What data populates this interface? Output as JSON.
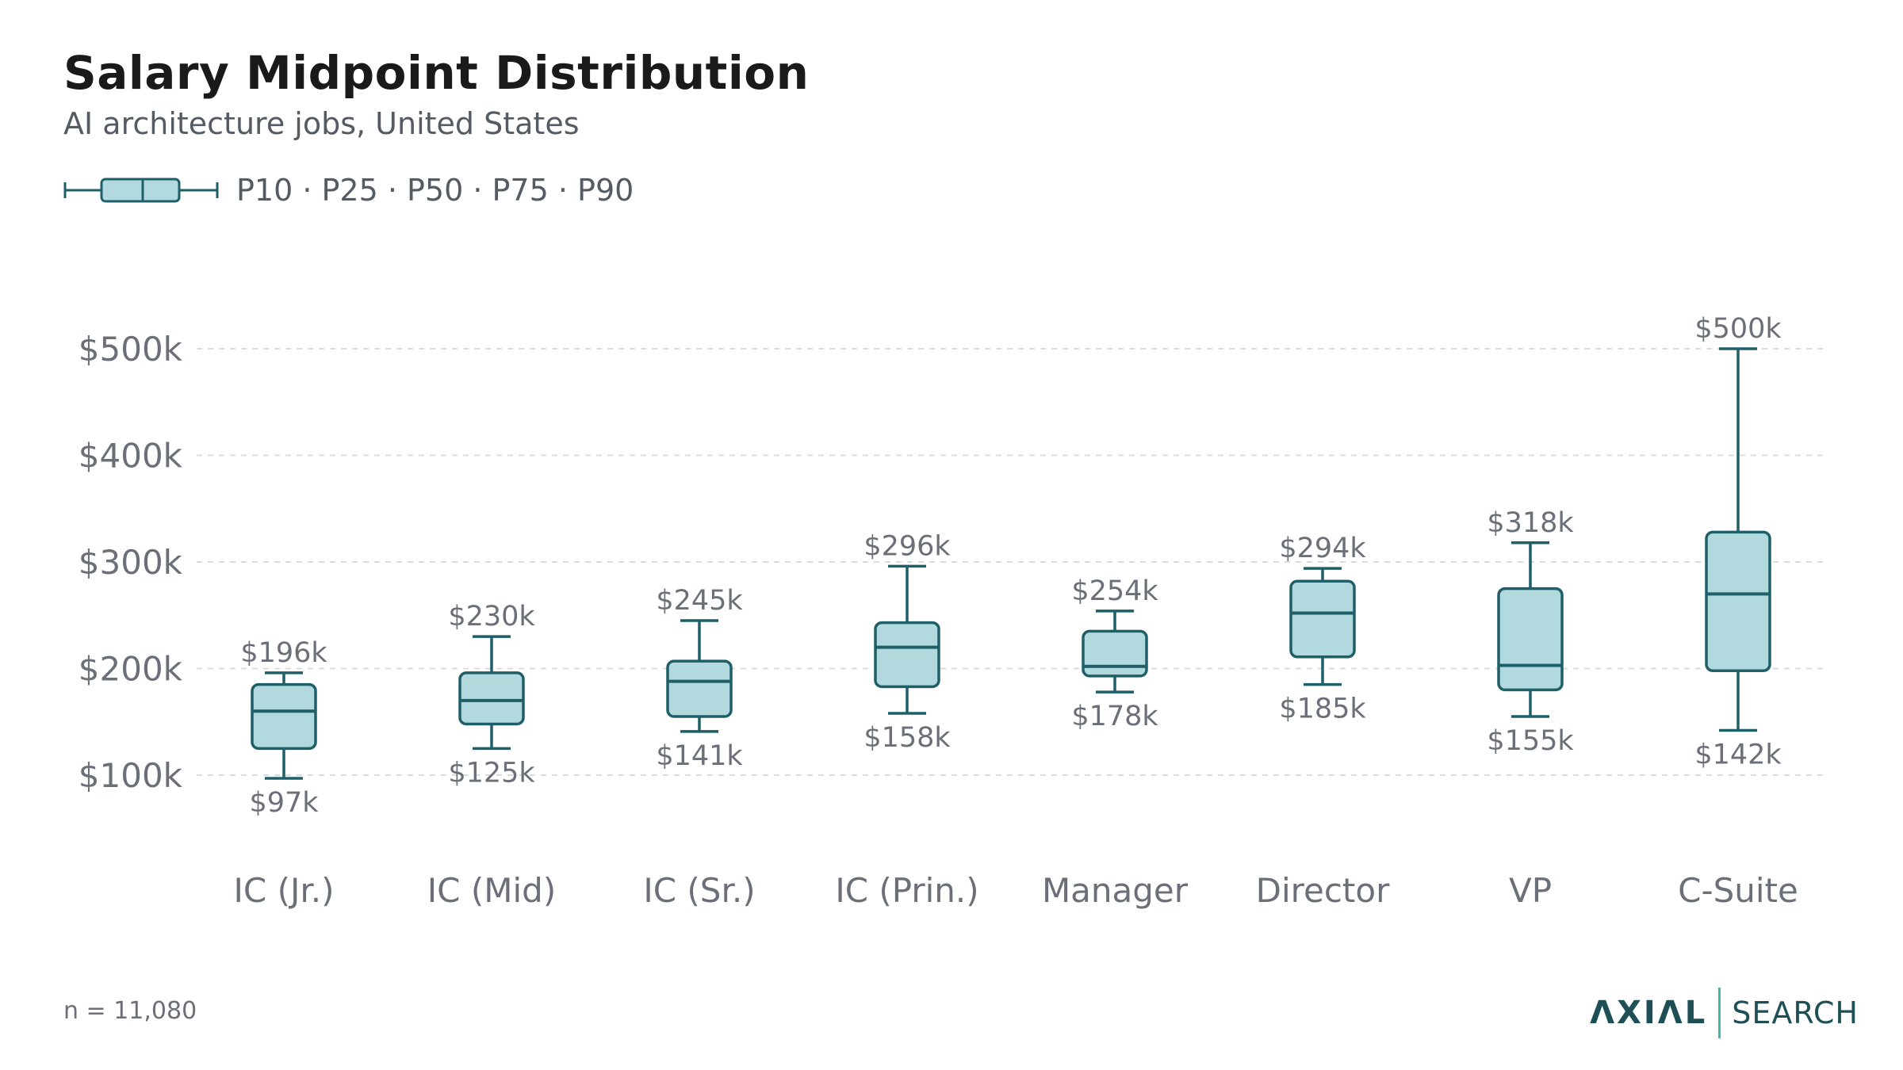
{
  "header": {
    "title": "Salary Midpoint Distribution",
    "subtitle": "AI architecture jobs, United States"
  },
  "legend": {
    "label": "P10 · P25 · P50 · P75 · P90"
  },
  "footer": {
    "note": "n = 11,080",
    "brand_primary": "ΛXIΛL",
    "brand_secondary": "SEARCH"
  },
  "colors": {
    "box_fill": "#b2d9de",
    "box_stroke": "#1f5f68",
    "grid": "#d9dcdf",
    "axis_text": "#6b7078",
    "value_text": "#6b7078",
    "brand_dark": "#1d4f55",
    "brand_accent": "#3fb8a4"
  },
  "chart_data": {
    "type": "box",
    "ylim": [
      0,
      520
    ],
    "yticks": [
      100,
      200,
      300,
      400,
      500
    ],
    "ytick_labels": [
      "$100k",
      "$200k",
      "$300k",
      "$400k",
      "$500k"
    ],
    "grid": true,
    "categories": [
      "IC (Jr.)",
      "IC (Mid)",
      "IC (Sr.)",
      "IC (Prin.)",
      "Manager",
      "Director",
      "VP",
      "C-Suite"
    ],
    "p10": [
      97,
      125,
      141,
      158,
      178,
      185,
      155,
      142
    ],
    "p25": [
      125,
      148,
      155,
      183,
      193,
      211,
      180,
      198
    ],
    "p50": [
      160,
      170,
      188,
      220,
      202,
      252,
      203,
      270
    ],
    "p75": [
      185,
      196,
      207,
      243,
      235,
      282,
      275,
      328
    ],
    "p90": [
      196,
      230,
      245,
      296,
      254,
      294,
      318,
      500
    ],
    "p10_labels": [
      "$97k",
      "$125k",
      "$141k",
      "$158k",
      "$178k",
      "$185k",
      "$155k",
      "$142k"
    ],
    "p90_labels": [
      "$196k",
      "$230k",
      "$245k",
      "$296k",
      "$254k",
      "$294k",
      "$318k",
      "$500k"
    ]
  }
}
